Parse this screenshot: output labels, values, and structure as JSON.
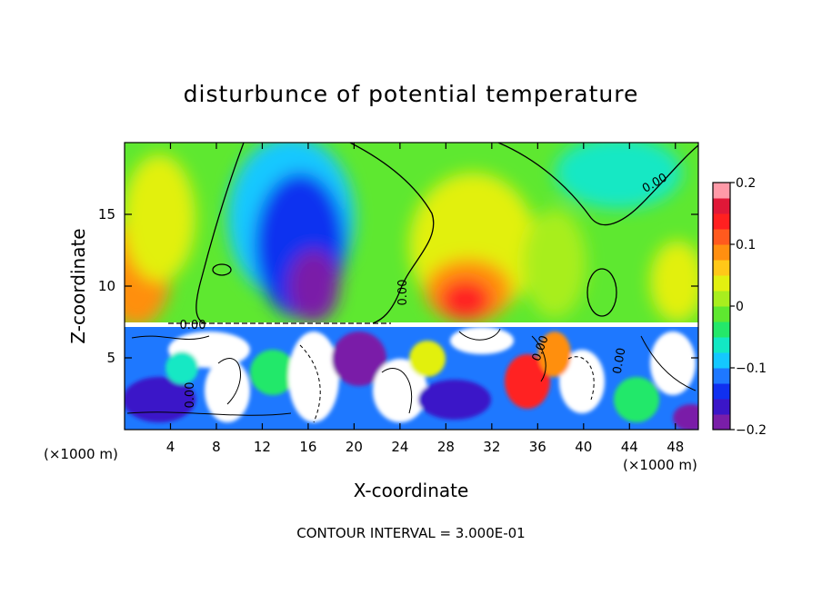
{
  "chart_data": {
    "type": "heatmap",
    "title": "disturbunce of potential temperature",
    "xlabel": "X-coordinate",
    "ylabel": "Z-coordinate",
    "x_unit_left": "(×1000 m)",
    "x_unit_right": "(×1000 m)",
    "xlim": [
      0,
      50
    ],
    "ylim": [
      0,
      20
    ],
    "x_ticks": [
      4,
      8,
      12,
      16,
      20,
      24,
      28,
      32,
      36,
      40,
      44,
      48
    ],
    "x_tick_labels": [
      "4",
      "8",
      "12",
      "16",
      "20",
      "24",
      "28",
      "32",
      "36",
      "40",
      "44",
      "48"
    ],
    "y_ticks": [
      5,
      10,
      15
    ],
    "y_tick_labels": [
      "5",
      "10",
      "15"
    ],
    "colorbar": {
      "range": [
        -0.2,
        0.2
      ],
      "ticks": [
        0.2,
        0.1,
        0,
        -0.1,
        -0.2
      ],
      "tick_labels": [
        "0.2",
        "0.1",
        "0",
        "−0.1",
        "−0.2"
      ],
      "colors": [
        "#7a1ea8",
        "#3b16c8",
        "#1030f0",
        "#1e78ff",
        "#14c8ff",
        "#12e8c4",
        "#24e86a",
        "#5ee830",
        "#a8ee1e",
        "#e2f010",
        "#ffc818",
        "#ff8f10",
        "#ff5a1e",
        "#ff2020",
        "#e01838",
        "#ff9aa8"
      ]
    },
    "contour_labels": [
      "0.00",
      "0.00",
      "0.00",
      "0.00",
      "0.00",
      "0.00"
    ],
    "footer": "CONTOUR INTERVAL = 3.000E-01",
    "grid": false
  }
}
